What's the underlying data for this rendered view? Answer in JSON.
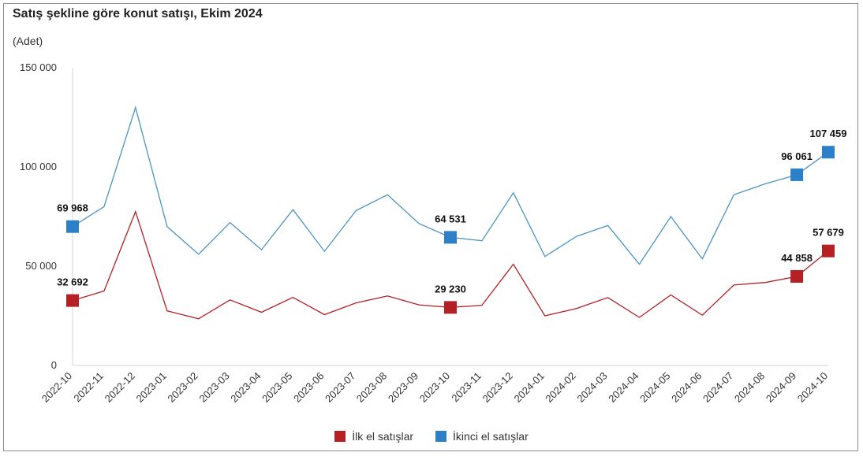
{
  "chart_data": {
    "type": "line",
    "title": "Satış şekline göre konut satışı, Ekim 2024",
    "unit": "(Adet)",
    "x": [
      "2022-10",
      "2022-11",
      "2022-12",
      "2023-01",
      "2023-02",
      "2023-03",
      "2023-04",
      "2023-05",
      "2023-06",
      "2023-07",
      "2023-08",
      "2023-09",
      "2023-10",
      "2023-11",
      "2023-12",
      "2024-01",
      "2024-02",
      "2024-03",
      "2024-04",
      "2024-05",
      "2024-06",
      "2024-07",
      "2024-08",
      "2024-09",
      "2024-10"
    ],
    "ylim": [
      0,
      150000
    ],
    "yticks": [
      0,
      50000,
      100000,
      150000
    ],
    "ytick_labels": [
      "0",
      "50 000",
      "100 000",
      "150 000"
    ],
    "series": [
      {
        "name": "İlk el satışlar",
        "color": "#b52025",
        "values": [
          32692,
          37500,
          77500,
          27500,
          23500,
          33000,
          26800,
          34300,
          25600,
          31500,
          35000,
          30500,
          29230,
          30300,
          51000,
          25000,
          28700,
          34200,
          24200,
          35500,
          25300,
          40500,
          41800,
          44858,
          57679
        ],
        "labeled_points": [
          {
            "index": 0,
            "label": "32 692"
          },
          {
            "index": 12,
            "label": "29 230"
          },
          {
            "index": 23,
            "label": "44 858"
          },
          {
            "index": 24,
            "label": "57 679"
          }
        ]
      },
      {
        "name": "İkinci el satışlar",
        "color": "#4a94c4",
        "marker_color": "#2d80c8",
        "values": [
          69968,
          80000,
          130000,
          70000,
          56000,
          72000,
          58300,
          78500,
          57500,
          78000,
          86000,
          71500,
          64531,
          62800,
          87000,
          54900,
          65000,
          70500,
          51000,
          75000,
          53700,
          86000,
          91500,
          96061,
          107459
        ],
        "labeled_points": [
          {
            "index": 0,
            "label": "69 968"
          },
          {
            "index": 12,
            "label": "64 531"
          },
          {
            "index": 23,
            "label": "96 061"
          },
          {
            "index": 24,
            "label": "107 459"
          }
        ]
      }
    ],
    "legend_position": "bottom",
    "grid": false
  }
}
